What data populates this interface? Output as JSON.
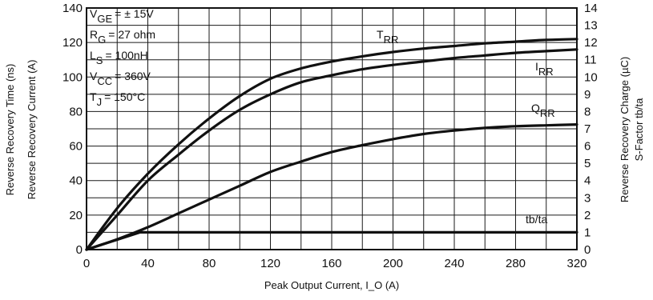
{
  "chart_data": {
    "type": "line",
    "xlabel": "Peak Output Current, I_O (A)",
    "ylabel_left": [
      "Reverse Recovery Time (ns)",
      "Reverse Recovery Current (A)"
    ],
    "ylabel_right": [
      "Reverse Recovery Charge (µC)",
      "S-Factor tb/ta"
    ],
    "xlim": [
      0,
      320
    ],
    "ylim_left": [
      0,
      140
    ],
    "ylim_right": [
      0,
      14
    ],
    "x_ticks": [
      "0",
      "40",
      "80",
      "120",
      "160",
      "200",
      "240",
      "280",
      "320"
    ],
    "y_ticks_left": [
      "0",
      "20",
      "40",
      "60",
      "80",
      "100",
      "120",
      "140"
    ],
    "y_ticks_right": [
      "0",
      "1",
      "2",
      "3",
      "4",
      "5",
      "6",
      "7",
      "8",
      "9",
      "10",
      "11",
      "12",
      "13",
      "14"
    ],
    "grid": true,
    "conditions": [
      {
        "sym": "V",
        "sub": "GE",
        "val": "= ± 15V"
      },
      {
        "sym": "R",
        "sub": "G",
        "val": "= 27 ohm"
      },
      {
        "sym": "L",
        "sub": "S",
        "val": "= 100nH"
      },
      {
        "sym": "V",
        "sub": "CC",
        "val": "= 360V"
      },
      {
        "sym": "T",
        "sub": "J",
        "val": "= 150°C"
      }
    ],
    "series": [
      {
        "name": "T_RR",
        "label_main": "T",
        "label_sub": "RR",
        "axis": "left",
        "x": [
          0,
          20,
          40,
          60,
          80,
          100,
          120,
          140,
          160,
          180,
          200,
          220,
          240,
          260,
          280,
          300,
          320
        ],
        "y": [
          0,
          24,
          44,
          61,
          76,
          89,
          99,
          105,
          109,
          112,
          114.5,
          116.5,
          118,
          119.5,
          120.5,
          121.5,
          122
        ]
      },
      {
        "name": "I_RR",
        "label_main": "I",
        "label_sub": "RR",
        "axis": "left",
        "x": [
          0,
          20,
          40,
          60,
          80,
          100,
          120,
          140,
          160,
          180,
          200,
          220,
          240,
          260,
          280,
          300,
          320
        ],
        "y": [
          0,
          20,
          40,
          55,
          69,
          81,
          90,
          97,
          101,
          104.5,
          107,
          109,
          111,
          112.5,
          114,
          115,
          116
        ]
      },
      {
        "name": "Q_RR",
        "label_main": "Q",
        "label_sub": "RR",
        "axis": "right",
        "x": [
          0,
          20,
          40,
          60,
          80,
          100,
          120,
          140,
          160,
          180,
          200,
          220,
          240,
          260,
          280,
          300,
          320
        ],
        "y": [
          0,
          0.6,
          1.3,
          2.1,
          2.9,
          3.7,
          4.5,
          5.1,
          5.65,
          6.05,
          6.4,
          6.7,
          6.9,
          7.05,
          7.15,
          7.2,
          7.25
        ]
      },
      {
        "name": "tb/ta",
        "label_main": "tb/ta",
        "label_sub": "",
        "axis": "right",
        "x": [
          0,
          35,
          320
        ],
        "y": [
          0,
          1.0,
          1.0
        ]
      }
    ]
  }
}
